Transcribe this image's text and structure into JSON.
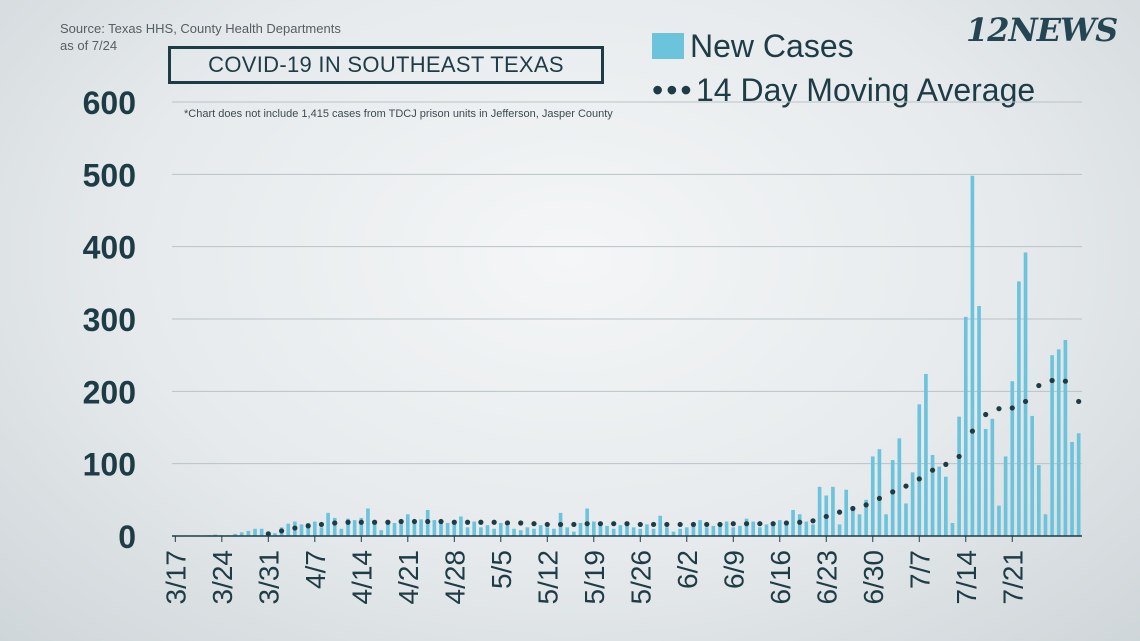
{
  "source": {
    "line1": "Source: Texas HHS, County Health Departments",
    "line2": "as of 7/24"
  },
  "title": "COVID-19 IN SOUTHEAST TEXAS",
  "note": "*Chart does not include 1,415 cases from TDCJ prison units in Jefferson, Jasper County",
  "logo": "12NEWS",
  "legend": {
    "bars": "New Cases",
    "dots": "14 Day Moving Average"
  },
  "colors": {
    "bar": "#6cc4dc",
    "dots": "#1e3c46",
    "text": "#1e3c46",
    "grid": "#b9c3c7"
  },
  "chart_data": {
    "type": "bar",
    "x_start": "3/17",
    "xtick_labels": [
      "3/17",
      "3/24",
      "3/31",
      "4/7",
      "4/14",
      "4/21",
      "4/28",
      "5/5",
      "5/12",
      "5/19",
      "5/26",
      "6/2",
      "6/9",
      "6/16",
      "6/23",
      "6/30",
      "7/7",
      "7/14",
      "7/21"
    ],
    "ylim": [
      0,
      600
    ],
    "yticks": [
      0,
      100,
      200,
      300,
      400,
      500,
      600
    ],
    "grid": true,
    "series": [
      {
        "name": "New Cases",
        "type": "bar",
        "values": [
          0,
          0,
          0,
          0,
          0,
          1,
          2,
          1,
          1,
          3,
          5,
          7,
          10,
          10,
          3,
          4,
          12,
          17,
          20,
          16,
          18,
          20,
          12,
          32,
          25,
          10,
          24,
          22,
          25,
          38,
          18,
          8,
          18,
          18,
          20,
          30,
          18,
          23,
          36,
          22,
          20,
          18,
          22,
          27,
          12,
          20,
          12,
          15,
          10,
          18,
          14,
          10,
          8,
          12,
          10,
          15,
          12,
          10,
          32,
          12,
          6,
          18,
          38,
          20,
          16,
          14,
          10,
          15,
          20,
          12,
          10,
          16,
          10,
          28,
          12,
          6,
          10,
          12,
          15,
          22,
          12,
          14,
          18,
          20,
          12,
          14,
          24,
          20,
          12,
          16,
          16,
          22,
          18,
          36,
          30,
          20,
          16,
          68,
          56,
          68,
          16,
          64,
          38,
          30,
          50,
          110,
          120,
          30,
          105,
          135,
          45,
          88,
          182,
          224,
          112,
          96,
          82,
          18,
          165,
          303,
          498,
          318,
          148,
          162,
          42,
          110,
          214,
          352,
          392,
          166,
          98,
          30,
          250,
          258,
          271,
          130,
          142
        ]
      },
      {
        "name": "14 Day Moving Average",
        "type": "line",
        "values": [
          null,
          null,
          null,
          null,
          null,
          null,
          null,
          null,
          null,
          null,
          null,
          null,
          null,
          null,
          3,
          5,
          7,
          9,
          11,
          12,
          14,
          15,
          16,
          17,
          18,
          19,
          19,
          19,
          19,
          19,
          19,
          19,
          19,
          19,
          20,
          20,
          20,
          20,
          20,
          20,
          20,
          20,
          19,
          19,
          19,
          19,
          19,
          19,
          19,
          19,
          18,
          18,
          18,
          17,
          17,
          17,
          16,
          16,
          16,
          16,
          16,
          16,
          17,
          17,
          17,
          17,
          17,
          17,
          17,
          17,
          16,
          16,
          16,
          16,
          16,
          16,
          16,
          16,
          16,
          16,
          16,
          16,
          16,
          17,
          17,
          17,
          17,
          17,
          17,
          17,
          17,
          18,
          18,
          19,
          19,
          20,
          21,
          24,
          27,
          30,
          33,
          36,
          38,
          40,
          43,
          47,
          52,
          56,
          61,
          65,
          69,
          73,
          79,
          85,
          91,
          95,
          99,
          101,
          110,
          126,
          145,
          158,
          168,
          172,
          176,
          176,
          177,
          179,
          186,
          196,
          208,
          212,
          215,
          219,
          214,
          200,
          186
        ]
      }
    ]
  }
}
